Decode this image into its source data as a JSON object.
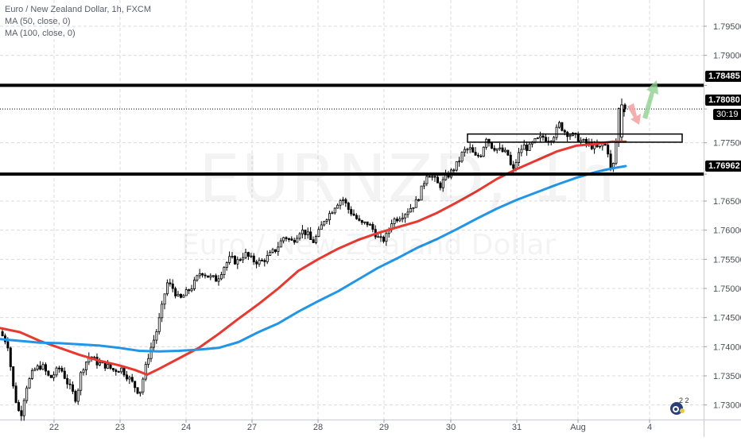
{
  "legend": {
    "title": "Euro / New Zealand Dollar, 1h, FXCM",
    "ma50": "MA (50, close, 0)",
    "ma100": "MA (100, close, 0)"
  },
  "watermark": {
    "symbol": "EURNZD, 1h",
    "name": "Euro / New Zealand Dollar"
  },
  "brand": {
    "label": "2 2"
  },
  "colors": {
    "ma50": "#e8382f",
    "ma100": "#2196e8",
    "candle": "#000000",
    "level": "#000000",
    "arrow_up": "#8fd08f",
    "arrow_down": "#f2a0a0",
    "grid": "#d8dbe0"
  },
  "chart_data": {
    "type": "candlestick",
    "title": "Euro / New Zealand Dollar, 1h, FXCM",
    "x_ticks": [
      "22",
      "23",
      "24",
      "27",
      "28",
      "29",
      "30",
      "31",
      "Aug",
      "4"
    ],
    "y_ticks": [
      "1.79500",
      "1.79000",
      "1.78485",
      "1.78080",
      "1.77500",
      "1.76962",
      "1.76500",
      "1.76000",
      "1.75500",
      "1.75000",
      "1.74500",
      "1.74000",
      "1.73500",
      "1.73000"
    ],
    "ylim": [
      1.7275,
      1.7995
    ],
    "grid": true,
    "price_labels": {
      "resistance": "1.78485",
      "current": "1.78080",
      "countdown": "30:19",
      "support": "1.76962"
    },
    "levels": [
      1.78485,
      1.76962
    ],
    "current_price": 1.7808,
    "zone": {
      "top": 1.7765,
      "bottom": 1.7751
    },
    "series": [
      {
        "name": "MA (50, close, 0)",
        "points": [
          [
            0,
            1.7432
          ],
          [
            25,
            1.7425
          ],
          [
            50,
            1.741
          ],
          [
            75,
            1.7398
          ],
          [
            100,
            1.7386
          ],
          [
            125,
            1.7376
          ],
          [
            150,
            1.7368
          ],
          [
            170,
            1.736
          ],
          [
            185,
            1.7352
          ],
          [
            200,
            1.7362
          ],
          [
            225,
            1.738
          ],
          [
            250,
            1.7398
          ],
          [
            275,
            1.7422
          ],
          [
            300,
            1.7448
          ],
          [
            325,
            1.7473
          ],
          [
            350,
            1.75
          ],
          [
            375,
            1.753
          ],
          [
            400,
            1.755
          ],
          [
            425,
            1.7568
          ],
          [
            450,
            1.7583
          ],
          [
            475,
            1.7595
          ],
          [
            500,
            1.7605
          ],
          [
            525,
            1.7615
          ],
          [
            550,
            1.763
          ],
          [
            575,
            1.7648
          ],
          [
            600,
            1.7667
          ],
          [
            625,
            1.7688
          ],
          [
            650,
            1.7705
          ],
          [
            675,
            1.772
          ],
          [
            700,
            1.7735
          ],
          [
            725,
            1.7745
          ],
          [
            750,
            1.7748
          ],
          [
            770,
            1.7752
          ],
          [
            787,
            1.7752
          ]
        ]
      },
      {
        "name": "MA (100, close, 0)",
        "points": [
          [
            0,
            1.7413
          ],
          [
            25,
            1.741
          ],
          [
            50,
            1.7407
          ],
          [
            75,
            1.7406
          ],
          [
            100,
            1.7404
          ],
          [
            125,
            1.7402
          ],
          [
            150,
            1.7398
          ],
          [
            175,
            1.7393
          ],
          [
            200,
            1.7392
          ],
          [
            225,
            1.7393
          ],
          [
            250,
            1.7395
          ],
          [
            275,
            1.7398
          ],
          [
            300,
            1.7408
          ],
          [
            325,
            1.7425
          ],
          [
            350,
            1.744
          ],
          [
            375,
            1.746
          ],
          [
            400,
            1.7478
          ],
          [
            425,
            1.7495
          ],
          [
            450,
            1.7515
          ],
          [
            475,
            1.7535
          ],
          [
            500,
            1.7552
          ],
          [
            525,
            1.757
          ],
          [
            550,
            1.7585
          ],
          [
            575,
            1.7602
          ],
          [
            600,
            1.762
          ],
          [
            625,
            1.7637
          ],
          [
            650,
            1.7652
          ],
          [
            675,
            1.7665
          ],
          [
            700,
            1.7678
          ],
          [
            725,
            1.769
          ],
          [
            750,
            1.77
          ],
          [
            770,
            1.7706
          ],
          [
            787,
            1.771
          ]
        ]
      }
    ],
    "price_path": [
      [
        0,
        1.743
      ],
      [
        12,
        1.7405
      ],
      [
        20,
        1.732
      ],
      [
        28,
        1.7278
      ],
      [
        35,
        1.733
      ],
      [
        45,
        1.736
      ],
      [
        55,
        1.7368
      ],
      [
        65,
        1.7345
      ],
      [
        78,
        1.7365
      ],
      [
        90,
        1.733
      ],
      [
        98,
        1.731
      ],
      [
        105,
        1.736
      ],
      [
        115,
        1.7385
      ],
      [
        125,
        1.7372
      ],
      [
        135,
        1.7368
      ],
      [
        145,
        1.736
      ],
      [
        155,
        1.7362
      ],
      [
        165,
        1.7345
      ],
      [
        178,
        1.732
      ],
      [
        183,
        1.735
      ],
      [
        190,
        1.739
      ],
      [
        198,
        1.742
      ],
      [
        205,
        1.746
      ],
      [
        212,
        1.751
      ],
      [
        220,
        1.75
      ],
      [
        228,
        1.748
      ],
      [
        235,
        1.749
      ],
      [
        245,
        1.7505
      ],
      [
        255,
        1.753
      ],
      [
        265,
        1.752
      ],
      [
        275,
        1.7515
      ],
      [
        285,
        1.754
      ],
      [
        292,
        1.7552
      ],
      [
        300,
        1.7545
      ],
      [
        310,
        1.756
      ],
      [
        320,
        1.7548
      ],
      [
        330,
        1.7545
      ],
      [
        340,
        1.7555
      ],
      [
        350,
        1.7568
      ],
      [
        360,
        1.759
      ],
      [
        370,
        1.758
      ],
      [
        380,
        1.76
      ],
      [
        388,
        1.7595
      ],
      [
        395,
        1.7578
      ],
      [
        402,
        1.7592
      ],
      [
        410,
        1.7618
      ],
      [
        418,
        1.763
      ],
      [
        425,
        1.7645
      ],
      [
        433,
        1.7655
      ],
      [
        441,
        1.7635
      ],
      [
        448,
        1.7625
      ],
      [
        456,
        1.761
      ],
      [
        465,
        1.7612
      ],
      [
        472,
        1.76
      ],
      [
        480,
        1.7582
      ],
      [
        487,
        1.7585
      ],
      [
        495,
        1.7615
      ],
      [
        503,
        1.7622
      ],
      [
        512,
        1.763
      ],
      [
        520,
        1.764
      ],
      [
        527,
        1.765
      ],
      [
        533,
        1.7672
      ],
      [
        540,
        1.77
      ],
      [
        547,
        1.769
      ],
      [
        555,
        1.7675
      ],
      [
        563,
        1.769
      ],
      [
        570,
        1.77
      ],
      [
        578,
        1.7715
      ],
      [
        585,
        1.7735
      ],
      [
        593,
        1.774
      ],
      [
        600,
        1.7725
      ],
      [
        607,
        1.773
      ],
      [
        614,
        1.776
      ],
      [
        620,
        1.7745
      ],
      [
        627,
        1.774
      ],
      [
        634,
        1.7735
      ],
      [
        641,
        1.773
      ],
      [
        647,
        1.7698
      ],
      [
        653,
        1.7725
      ],
      [
        660,
        1.7745
      ],
      [
        667,
        1.774
      ],
      [
        675,
        1.7752
      ],
      [
        685,
        1.776
      ],
      [
        693,
        1.7755
      ],
      [
        700,
        1.7765
      ],
      [
        706,
        1.7782
      ],
      [
        712,
        1.777
      ],
      [
        718,
        1.7765
      ],
      [
        726,
        1.776
      ],
      [
        734,
        1.7752
      ],
      [
        742,
        1.7748
      ],
      [
        750,
        1.7742
      ],
      [
        756,
        1.774
      ],
      [
        762,
        1.775
      ],
      [
        767,
        1.7735
      ],
      [
        771,
        1.77
      ],
      [
        775,
        1.7718
      ],
      [
        778,
        1.7762
      ],
      [
        781,
        1.7815
      ],
      [
        785,
        1.7808
      ]
    ]
  }
}
